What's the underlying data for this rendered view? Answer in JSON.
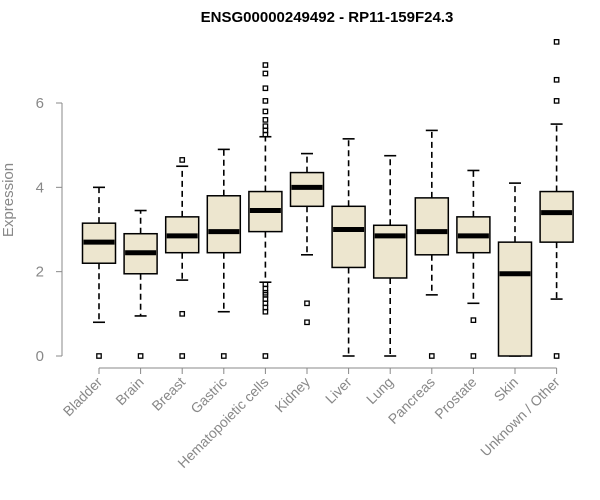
{
  "chart_data": {
    "type": "boxplot",
    "title": "ENSG00000249492 - RP11-159F24.3",
    "xlabel": "",
    "ylabel": "Expression",
    "ylim": [
      0,
      7.5
    ],
    "yticks": [
      0,
      2,
      4,
      6
    ],
    "categories": [
      "Bladder",
      "Brain",
      "Breast",
      "Gastric",
      "Hematopoietic cells",
      "Kidney",
      "Liver",
      "Lung",
      "Pancreas",
      "Prostate",
      "Skin",
      "Unknown / Other"
    ],
    "boxes": [
      {
        "name": "Bladder",
        "whisker_low": 0.8,
        "q1": 2.2,
        "median": 2.7,
        "q3": 3.15,
        "whisker_high": 4.0,
        "outliers": [
          0
        ]
      },
      {
        "name": "Brain",
        "whisker_low": 0.95,
        "q1": 1.95,
        "median": 2.45,
        "q3": 2.9,
        "whisker_high": 3.45,
        "outliers": [
          0
        ]
      },
      {
        "name": "Breast",
        "whisker_low": 1.8,
        "q1": 2.45,
        "median": 2.85,
        "q3": 3.3,
        "whisker_high": 4.5,
        "outliers": [
          4.65,
          1.0,
          0
        ]
      },
      {
        "name": "Gastric",
        "whisker_low": 1.05,
        "q1": 2.45,
        "median": 2.95,
        "q3": 3.8,
        "whisker_high": 4.9,
        "outliers": [
          0
        ]
      },
      {
        "name": "Hematopoietic cells",
        "whisker_low": 1.75,
        "q1": 2.95,
        "median": 3.45,
        "q3": 3.9,
        "whisker_high": 5.2,
        "outliers": [
          6.9,
          6.7,
          6.35,
          6.05,
          5.8,
          5.6,
          5.45,
          5.35,
          5.25,
          1.7,
          1.6,
          1.5,
          1.45,
          1.35,
          1.25,
          1.15,
          1.05,
          0
        ]
      },
      {
        "name": "Kidney",
        "whisker_low": 2.4,
        "q1": 3.55,
        "median": 4.0,
        "q3": 4.35,
        "whisker_high": 4.8,
        "outliers": [
          1.25,
          0.8
        ]
      },
      {
        "name": "Liver",
        "whisker_low": 0.0,
        "q1": 2.1,
        "median": 3.0,
        "q3": 3.55,
        "whisker_high": 5.15,
        "outliers": []
      },
      {
        "name": "Lung",
        "whisker_low": 0.0,
        "q1": 1.85,
        "median": 2.85,
        "q3": 3.1,
        "whisker_high": 4.75,
        "outliers": []
      },
      {
        "name": "Pancreas",
        "whisker_low": 1.45,
        "q1": 2.4,
        "median": 2.95,
        "q3": 3.75,
        "whisker_high": 5.35,
        "outliers": [
          0
        ]
      },
      {
        "name": "Prostate",
        "whisker_low": 1.25,
        "q1": 2.45,
        "median": 2.85,
        "q3": 3.3,
        "whisker_high": 4.4,
        "outliers": [
          0.85,
          0
        ]
      },
      {
        "name": "Skin",
        "whisker_low": 0.0,
        "q1": 0.0,
        "median": 1.95,
        "q3": 2.7,
        "whisker_high": 4.1,
        "outliers": []
      },
      {
        "name": "Unknown / Other",
        "whisker_low": 1.35,
        "q1": 2.7,
        "median": 3.4,
        "q3": 3.9,
        "whisker_high": 5.5,
        "outliers": [
          7.45,
          6.55,
          6.05,
          0
        ]
      }
    ],
    "colors": {
      "box_fill": "#ede6cf",
      "box_stroke": "#000000",
      "axis": "#888888"
    }
  }
}
